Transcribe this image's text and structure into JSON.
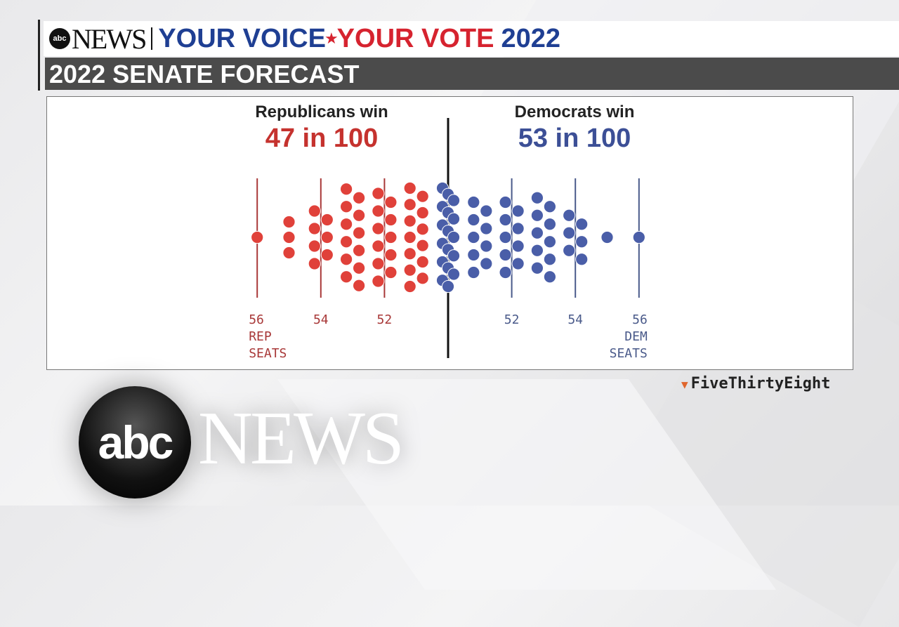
{
  "header": {
    "abc_logo": "abc",
    "news": "NEWS",
    "slogan_part1": "YOUR VOICE",
    "slogan_part2": "YOUR VOTE",
    "slogan_year": "2022",
    "subtitle": "2022 SENATE FORECAST"
  },
  "overlay_logo": {
    "abc": "abc",
    "news": "NEWS"
  },
  "source": {
    "name": "FiveThirtyEight",
    "icon": "fox-icon"
  },
  "colors": {
    "republican": "#e0413a",
    "democrat": "#4a5ea8",
    "rep_text": "#c5322e",
    "dem_text": "#3c4f96"
  },
  "chart_data": {
    "type": "dot-histogram",
    "left_heading": "Republicans win",
    "left_value": "47 in 100",
    "right_heading": "Democrats win",
    "right_value": "53 in 100",
    "ticks": [
      {
        "label": "56",
        "sub": [
          "REP",
          "SEATS"
        ],
        "party": "R",
        "seats": 56
      },
      {
        "label": "54",
        "party": "R",
        "seats": 54
      },
      {
        "label": "52",
        "party": "R",
        "seats": 52
      },
      {
        "label": "52",
        "party": "D",
        "seats": 52
      },
      {
        "label": "54",
        "party": "D",
        "seats": 54
      },
      {
        "label": "56",
        "sub": [
          "DEM",
          "SEATS"
        ],
        "party": "D",
        "seats": 56
      }
    ],
    "series": [
      {
        "party": "R",
        "seats": [
          56,
          55,
          54,
          53,
          52,
          51
        ],
        "counts": [
          1,
          3,
          7,
          12,
          11,
          13
        ]
      },
      {
        "party": "D",
        "seats": [
          50,
          51,
          52,
          53,
          54,
          55,
          56
        ],
        "counts": [
          17,
          9,
          9,
          10,
          6,
          1,
          1
        ]
      }
    ]
  }
}
